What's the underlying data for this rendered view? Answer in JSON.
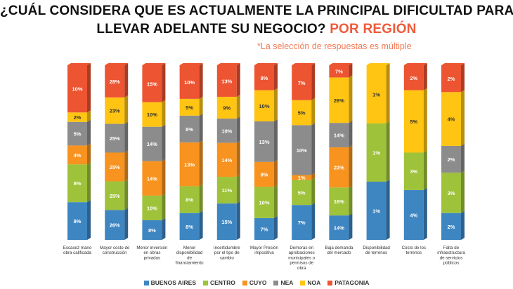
{
  "title": {
    "line1": "¿CUÁL CONSIDERA QUE ES ACTUALMENTE LA PRINCIPAL DIFICULTAD PARA",
    "line2": "LLEVAR ADELANTE SU NEGOCIO?",
    "accent": "POR REGIÓN"
  },
  "subtitle": "*La selección de respuestas es múltiple",
  "chart_data": {
    "type": "bar",
    "stacked": true,
    "normalized": true,
    "title": "¿CUÁL CONSIDERA QUE ES ACTUALMENTE LA PRINCIPAL DIFICULTAD PARA LLEVAR ADELANTE SU NEGOCIO? POR REGIÓN",
    "categories": [
      "Escasez mano obra calificada",
      "Mayor costo de construcción",
      "Menor inversión en obras privadas",
      "Menor disponibilidad de financiamiento",
      "Incertidumbre por el tipo de cambio",
      "Mayor Presión impositiva",
      "Demoras en aprobaciones municipales o permisos de obra",
      "Baja demanda del mercado",
      "Disponibilidad de terrenos",
      "Costo de los terrenos",
      "Falta de infraestructura de servicios públicos"
    ],
    "series": [
      {
        "name": "BUENOS AIRES",
        "color": "#3e86c2",
        "values": [
          8,
          26,
          8,
          8,
          15,
          7,
          7,
          14,
          1,
          4,
          2
        ]
      },
      {
        "name": "CENTRO",
        "color": "#9ec23a",
        "values": [
          8,
          25,
          10,
          8,
          11,
          10,
          5,
          16,
          1,
          3,
          3
        ]
      },
      {
        "name": "CUYO",
        "color": "#f7931e",
        "values": [
          4,
          25,
          14,
          13,
          14,
          8,
          1,
          23,
          0,
          0,
          0
        ]
      },
      {
        "name": "NEA",
        "color": "#8c8c8c",
        "values": [
          5,
          25,
          14,
          8,
          10,
          13,
          10,
          14,
          0,
          0,
          2
        ]
      },
      {
        "name": "NOA",
        "color": "#ffc512",
        "values": [
          2,
          23,
          10,
          5,
          9,
          10,
          5,
          26,
          1,
          5,
          4
        ]
      },
      {
        "name": "PATAGONIA",
        "color": "#ed5431",
        "values": [
          10,
          28,
          15,
          10,
          13,
          8,
          7,
          7,
          0,
          2,
          2
        ]
      }
    ],
    "value_suffix": "%",
    "legend": "bottom-center"
  }
}
